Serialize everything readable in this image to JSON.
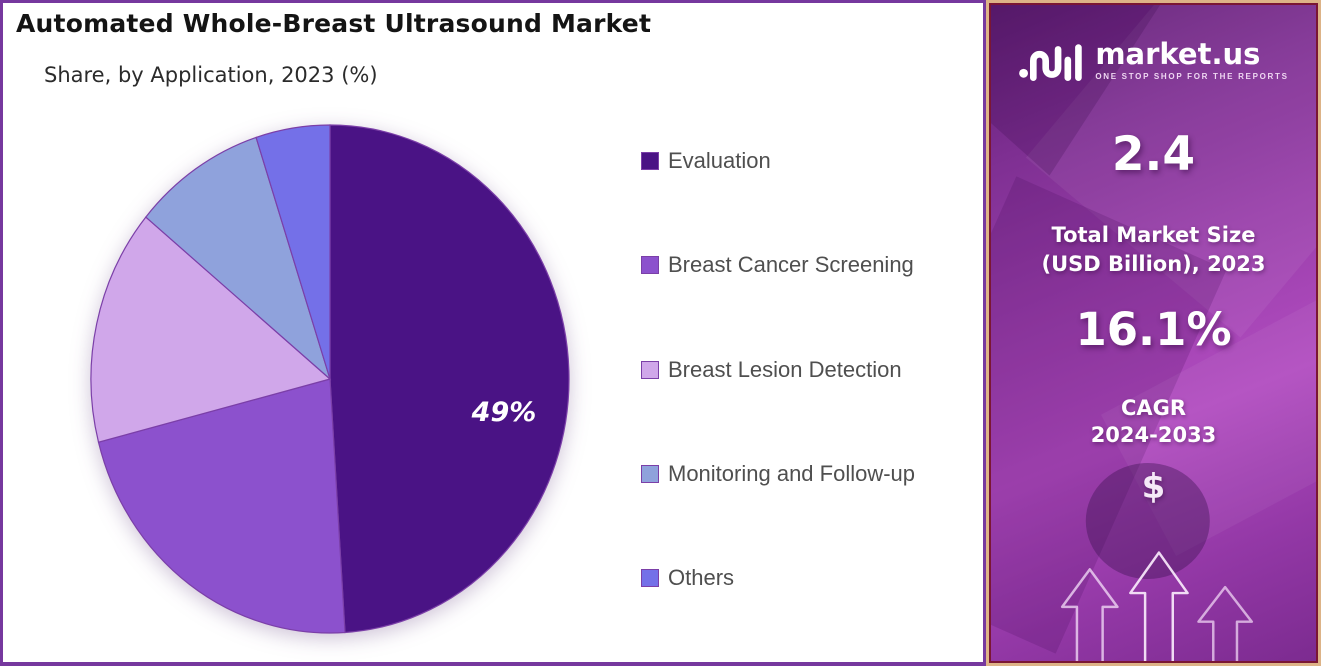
{
  "header": {
    "title": "Automated Whole-Breast Ultrasound Market",
    "subtitle": "Share, by Application, 2023 (%)"
  },
  "chart_data": {
    "type": "pie",
    "title": "Automated Whole-Breast Ultrasound Market Share, by Application, 2023 (%)",
    "labels": [
      "Evaluation",
      "Breast Cancer Screening",
      "Breast Lesion Detection",
      "Monitoring and Follow-up",
      "Others"
    ],
    "values": [
      49,
      22,
      15,
      9,
      5
    ],
    "unit": "%",
    "colors": [
      "#4A1385",
      "#8C51CD",
      "#D0A7EA",
      "#8FA2DC",
      "#7470E8"
    ],
    "slice_stroke": "#7B3FA8",
    "data_label": "49%",
    "data_label_slice": "Evaluation",
    "legend_position": "right",
    "start_angle_deg": 0,
    "direction": "clockwise"
  },
  "sidebar": {
    "brand": "market.us",
    "tagline": "ONE STOP SHOP FOR THE REPORTS",
    "market_size": {
      "value": "2.4",
      "label_line1": "Total Market Size",
      "label_line2": "(USD Billion), 2023"
    },
    "cagr": {
      "value": "16.1%",
      "label_line1": "CAGR",
      "label_line2": "2024-2033"
    },
    "dollar_symbol": "$"
  },
  "palette": {
    "panel_border": "#76389E",
    "sidebar_border_outer": "#DDB387",
    "sidebar_border_inner": "#7A1634",
    "slice_stroke": "#7B3FA8",
    "legend_text": "#4F4F4F"
  }
}
